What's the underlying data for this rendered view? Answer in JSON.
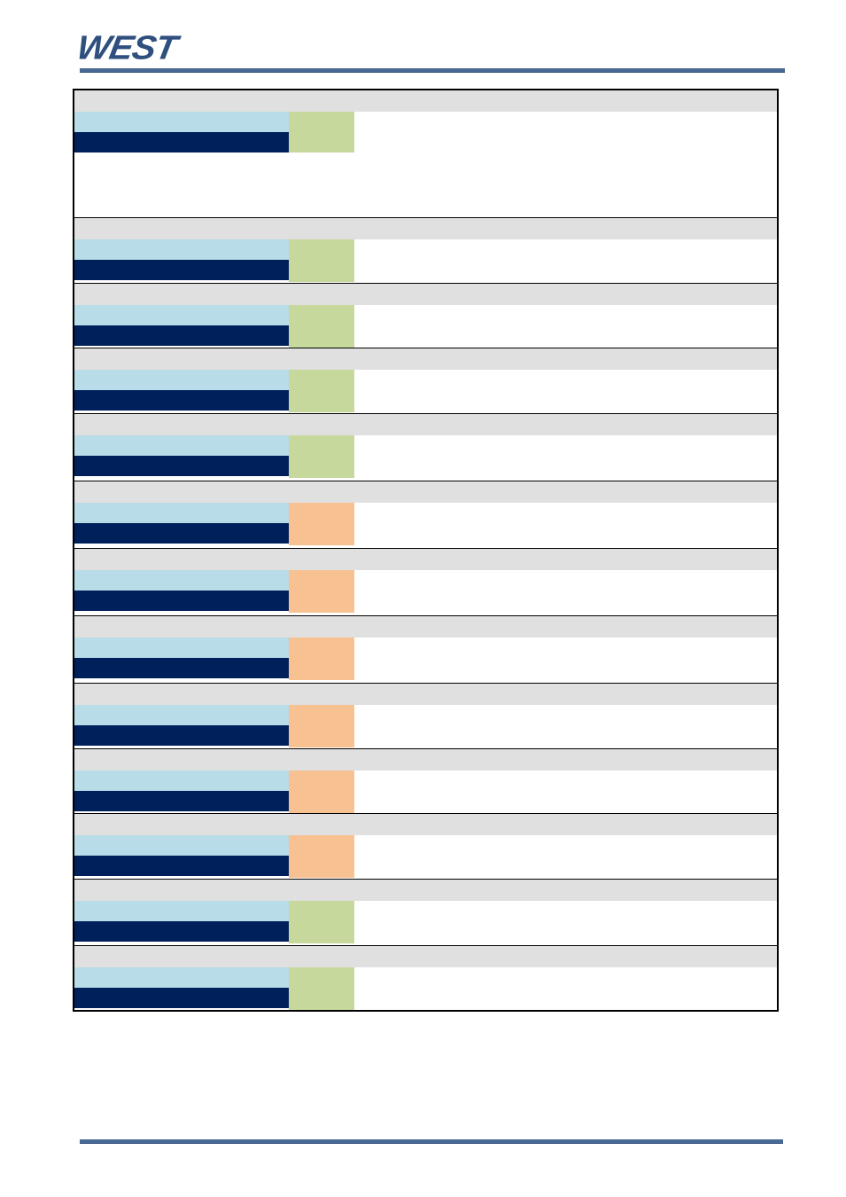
{
  "header": {
    "logo_text": "WEST",
    "brand_color": "#2f4f7f"
  },
  "colors": {
    "section_header": "#e0e0e0",
    "light_blue": "#b8dce8",
    "dark_blue": "#00205c",
    "status_green": "#c6d89c",
    "status_orange": "#f8c192"
  },
  "sections": [
    {
      "header": "",
      "param": "",
      "value": "",
      "status": "green",
      "description": ""
    },
    {
      "header": "",
      "param": "",
      "value": "",
      "status": "green",
      "description": ""
    },
    {
      "header": "",
      "param": "",
      "value": "",
      "status": "green",
      "description": ""
    },
    {
      "header": "",
      "param": "",
      "value": "",
      "status": "green",
      "description": ""
    },
    {
      "header": "",
      "param": "",
      "value": "",
      "status": "green",
      "description": ""
    },
    {
      "header": "",
      "param": "",
      "value": "",
      "status": "orange",
      "description": ""
    },
    {
      "header": "",
      "param": "",
      "value": "",
      "status": "orange",
      "description": ""
    },
    {
      "header": "",
      "param": "",
      "value": "",
      "status": "orange",
      "description": ""
    },
    {
      "header": "",
      "param": "",
      "value": "",
      "status": "orange",
      "description": ""
    },
    {
      "header": "",
      "param": "",
      "value": "",
      "status": "orange",
      "description": ""
    },
    {
      "header": "",
      "param": "",
      "value": "",
      "status": "orange",
      "description": ""
    },
    {
      "header": "",
      "param": "",
      "value": "",
      "status": "green",
      "description": ""
    },
    {
      "header": "",
      "param": "",
      "value": "",
      "status": "green",
      "description": ""
    }
  ]
}
